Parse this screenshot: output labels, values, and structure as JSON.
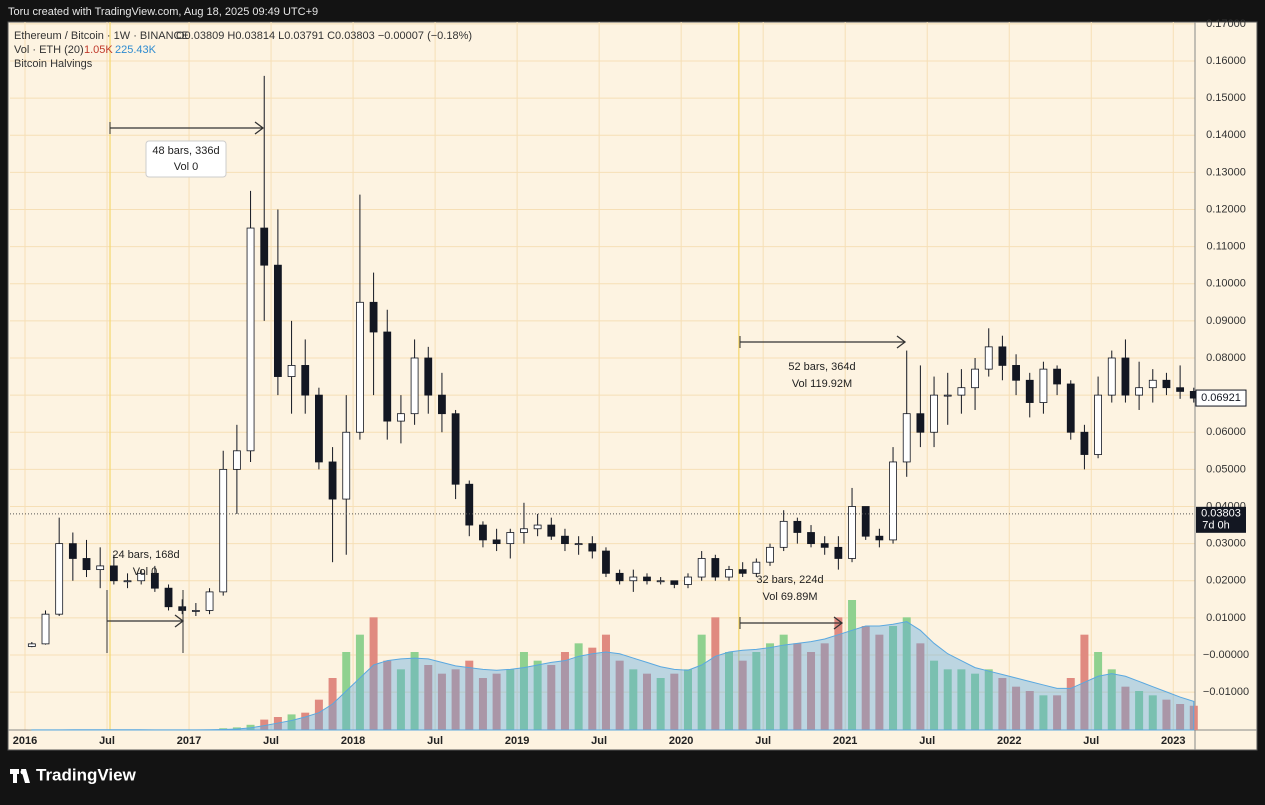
{
  "header": {
    "credit": "Toru created with TradingView.com, Aug 18, 2025 09:49 UTC+9"
  },
  "footer": {
    "logo": "TradingView"
  },
  "chart_data": {
    "type": "candlestick",
    "legend": {
      "symbol": "Ethereum / Bitcoin · 1W · BINANCE",
      "ohlc": "O0.03809 H0.03814 L0.03791 C0.03803 −0.00007 (−0.18%)",
      "volume_label": "Vol · ETH (20)",
      "volume_value": "1.05K",
      "volume_ma_value": "225.43K",
      "indicator": "Bitcoin Halvings"
    },
    "x": [
      "2016-01",
      "2016-02",
      "2016-03",
      "2016-04",
      "2016-05",
      "2016-06",
      "2016-07",
      "2016-08",
      "2016-09",
      "2016-10",
      "2016-11",
      "2016-12",
      "2017-01",
      "2017-02",
      "2017-03",
      "2017-04",
      "2017-05",
      "2017-06",
      "2017-07",
      "2017-08",
      "2017-09",
      "2017-10",
      "2017-11",
      "2017-12",
      "2018-01",
      "2018-02",
      "2018-03",
      "2018-04",
      "2018-05",
      "2018-06",
      "2018-07",
      "2018-08",
      "2018-09",
      "2018-10",
      "2018-11",
      "2018-12",
      "2019-01",
      "2019-02",
      "2019-03",
      "2019-04",
      "2019-05",
      "2019-06",
      "2019-07",
      "2019-08",
      "2019-09",
      "2019-10",
      "2019-11",
      "2019-12",
      "2020-01",
      "2020-02",
      "2020-03",
      "2020-04",
      "2020-05",
      "2020-06",
      "2020-07",
      "2020-08",
      "2020-09",
      "2020-10",
      "2020-11",
      "2020-12",
      "2021-01",
      "2021-02",
      "2021-03",
      "2021-04",
      "2021-05",
      "2021-06",
      "2021-07",
      "2021-08",
      "2021-09",
      "2021-10",
      "2021-11",
      "2021-12",
      "2022-01",
      "2022-02",
      "2022-03",
      "2022-04",
      "2022-05",
      "2022-06",
      "2022-07",
      "2022-08",
      "2022-09",
      "2022-10",
      "2022-11",
      "2022-12",
      "2023-01",
      "2023-02"
    ],
    "open": [
      0.0023,
      0.003,
      0.011,
      0.03,
      0.026,
      0.023,
      0.024,
      0.02,
      0.02,
      0.022,
      0.018,
      0.013,
      0.012,
      0.012,
      0.017,
      0.05,
      0.055,
      0.115,
      0.105,
      0.075,
      0.078,
      0.07,
      0.052,
      0.042,
      0.06,
      0.095,
      0.087,
      0.063,
      0.065,
      0.08,
      0.07,
      0.065,
      0.046,
      0.035,
      0.031,
      0.03,
      0.033,
      0.034,
      0.035,
      0.032,
      0.03,
      0.03,
      0.028,
      0.022,
      0.02,
      0.021,
      0.02,
      0.02,
      0.019,
      0.021,
      0.026,
      0.021,
      0.023,
      0.022,
      0.025,
      0.029,
      0.036,
      0.033,
      0.03,
      0.029,
      0.026,
      0.04,
      0.032,
      0.031,
      0.052,
      0.065,
      0.06,
      0.07,
      0.07,
      0.072,
      0.077,
      0.083,
      0.078,
      0.074,
      0.068,
      0.077,
      0.073,
      0.06,
      0.054,
      0.07,
      0.08,
      0.07,
      0.072,
      0.074,
      0.072,
      0.071
    ],
    "high": [
      0.0035,
      0.012,
      0.037,
      0.033,
      0.031,
      0.029,
      0.027,
      0.022,
      0.023,
      0.024,
      0.019,
      0.015,
      0.014,
      0.018,
      0.055,
      0.062,
      0.125,
      0.156,
      0.12,
      0.09,
      0.085,
      0.072,
      0.056,
      0.07,
      0.124,
      0.103,
      0.093,
      0.07,
      0.085,
      0.083,
      0.076,
      0.066,
      0.047,
      0.036,
      0.034,
      0.034,
      0.041,
      0.038,
      0.037,
      0.034,
      0.032,
      0.032,
      0.029,
      0.023,
      0.023,
      0.022,
      0.021,
      0.02,
      0.022,
      0.028,
      0.027,
      0.024,
      0.025,
      0.026,
      0.03,
      0.039,
      0.037,
      0.035,
      0.032,
      0.032,
      0.045,
      0.04,
      0.034,
      0.056,
      0.082,
      0.078,
      0.075,
      0.076,
      0.077,
      0.08,
      0.088,
      0.086,
      0.081,
      0.076,
      0.079,
      0.078,
      0.074,
      0.062,
      0.075,
      0.082,
      0.085,
      0.079,
      0.077,
      0.076,
      0.078,
      0.072
    ],
    "low": [
      0.0021,
      0.0028,
      0.0105,
      0.02,
      0.021,
      0.018,
      0.019,
      0.018,
      0.019,
      0.017,
      0.012,
      0.011,
      0.0105,
      0.011,
      0.016,
      0.038,
      0.052,
      0.09,
      0.07,
      0.065,
      0.065,
      0.05,
      0.025,
      0.027,
      0.058,
      0.07,
      0.058,
      0.057,
      0.062,
      0.065,
      0.06,
      0.042,
      0.032,
      0.029,
      0.028,
      0.026,
      0.03,
      0.032,
      0.031,
      0.028,
      0.027,
      0.026,
      0.021,
      0.019,
      0.017,
      0.019,
      0.019,
      0.018,
      0.018,
      0.02,
      0.02,
      0.02,
      0.021,
      0.021,
      0.024,
      0.028,
      0.03,
      0.029,
      0.027,
      0.023,
      0.025,
      0.031,
      0.029,
      0.03,
      0.048,
      0.056,
      0.056,
      0.062,
      0.065,
      0.066,
      0.075,
      0.074,
      0.07,
      0.064,
      0.065,
      0.07,
      0.058,
      0.05,
      0.053,
      0.068,
      0.068,
      0.066,
      0.068,
      0.07,
      0.069,
      0.068
    ],
    "close": [
      0.003,
      0.011,
      0.03,
      0.026,
      0.023,
      0.024,
      0.02,
      0.02,
      0.022,
      0.018,
      0.013,
      0.012,
      0.012,
      0.017,
      0.05,
      0.055,
      0.115,
      0.105,
      0.075,
      0.078,
      0.07,
      0.052,
      0.042,
      0.06,
      0.095,
      0.087,
      0.063,
      0.065,
      0.08,
      0.07,
      0.065,
      0.046,
      0.035,
      0.031,
      0.03,
      0.033,
      0.034,
      0.035,
      0.032,
      0.03,
      0.03,
      0.028,
      0.022,
      0.02,
      0.021,
      0.02,
      0.02,
      0.019,
      0.021,
      0.026,
      0.021,
      0.023,
      0.022,
      0.025,
      0.029,
      0.036,
      0.033,
      0.03,
      0.029,
      0.026,
      0.04,
      0.032,
      0.031,
      0.052,
      0.065,
      0.06,
      0.07,
      0.07,
      0.072,
      0.077,
      0.083,
      0.078,
      0.074,
      0.068,
      0.077,
      0.073,
      0.06,
      0.054,
      0.07,
      0.08,
      0.07,
      0.072,
      0.074,
      0.072,
      0.071,
      0.0692
    ],
    "volume": [
      1,
      2,
      5,
      4,
      3,
      3,
      3,
      2,
      2,
      2,
      2,
      2,
      3,
      5,
      20,
      30,
      60,
      120,
      150,
      180,
      200,
      350,
      600,
      900,
      1100,
      1300,
      800,
      700,
      900,
      750,
      650,
      700,
      800,
      600,
      650,
      700,
      900,
      800,
      750,
      900,
      1000,
      950,
      1100,
      800,
      700,
      650,
      600,
      650,
      700,
      1100,
      1300,
      900,
      800,
      900,
      1000,
      1100,
      1000,
      900,
      1000,
      1300,
      1500,
      1200,
      1100,
      1200,
      1300,
      1000,
      800,
      700,
      700,
      650,
      700,
      600,
      500,
      450,
      400,
      400,
      600,
      1100,
      900,
      700,
      500,
      450,
      400,
      350,
      300,
      280
    ],
    "volume_ma": [
      1,
      1,
      2,
      3,
      3,
      3,
      3,
      3,
      3,
      2,
      2,
      2,
      2,
      3,
      6,
      12,
      25,
      50,
      80,
      110,
      150,
      200,
      300,
      450,
      600,
      750,
      800,
      820,
      830,
      820,
      780,
      740,
      720,
      700,
      690,
      700,
      720,
      750,
      780,
      800,
      850,
      880,
      900,
      880,
      830,
      780,
      730,
      700,
      690,
      750,
      850,
      900,
      920,
      930,
      950,
      980,
      1000,
      1020,
      1050,
      1100,
      1150,
      1200,
      1200,
      1220,
      1250,
      1150,
      1000,
      880,
      800,
      720,
      680,
      640,
      600,
      560,
      520,
      480,
      480,
      550,
      620,
      650,
      620,
      560,
      500,
      440,
      380,
      330
    ],
    "up_color": "#ffffff",
    "down_color": "#131722",
    "candle_border": "#131722",
    "volume_up_color": "#8fd18f",
    "volume_down_color": "#e08a80",
    "volume_ma_color": "#5aa8e0",
    "ylim": [
      -0.0202,
      0.1705
    ],
    "yticks": [
      {
        "value": 0.17,
        "label": "0.17000"
      },
      {
        "value": 0.16,
        "label": "0.16000"
      },
      {
        "value": 0.15,
        "label": "0.15000"
      },
      {
        "value": 0.14,
        "label": "0.14000"
      },
      {
        "value": 0.13,
        "label": "0.13000"
      },
      {
        "value": 0.12,
        "label": "0.12000"
      },
      {
        "value": 0.11,
        "label": "0.11000"
      },
      {
        "value": 0.1,
        "label": "0.10000"
      },
      {
        "value": 0.09,
        "label": "0.09000"
      },
      {
        "value": 0.08,
        "label": "0.08000"
      },
      {
        "value": 0.07,
        "label": "0.07000"
      },
      {
        "value": 0.06,
        "label": "0.06000"
      },
      {
        "value": 0.05,
        "label": "0.05000"
      },
      {
        "value": 0.04,
        "label": "0.04000"
      },
      {
        "value": 0.03,
        "label": "0.03000"
      },
      {
        "value": 0.02,
        "label": "0.02000"
      },
      {
        "value": 0.01,
        "label": "0.01000"
      },
      {
        "value": 0,
        "label": "−0.00000"
      },
      {
        "value": -0.01,
        "label": "−0.01000"
      }
    ],
    "xticks": [
      {
        "value": "2016-01",
        "label": "2016"
      },
      {
        "value": "2016-07",
        "label": "Jul"
      },
      {
        "value": "2017-01",
        "label": "2017"
      },
      {
        "value": "2017-07",
        "label": "Jul"
      },
      {
        "value": "2018-01",
        "label": "2018"
      },
      {
        "value": "2018-07",
        "label": "Jul"
      },
      {
        "value": "2019-01",
        "label": "2019"
      },
      {
        "value": "2019-07",
        "label": "Jul"
      },
      {
        "value": "2020-01",
        "label": "2020"
      },
      {
        "value": "2020-07",
        "label": "Jul"
      },
      {
        "value": "2021-01",
        "label": "2021"
      },
      {
        "value": "2021-07",
        "label": "Jul"
      },
      {
        "value": "2022-01",
        "label": "2022"
      },
      {
        "value": "2022-07",
        "label": "Jul"
      },
      {
        "value": "2023-01",
        "label": "2023"
      }
    ],
    "grid": true,
    "halvings": [
      "2016-07",
      "2020-05"
    ],
    "halving_color": "#f5d76e",
    "price_labels": [
      {
        "value": 0.06921,
        "label": "0.06921"
      },
      {
        "value": 0.03803,
        "label": "0.03803",
        "countdown": "7d 0h"
      }
    ],
    "measures": [
      {
        "bars": "48 bars, 336d",
        "vol": "Vol 0"
      },
      {
        "bars": "24 bars, 168d",
        "vol": "Vol 0"
      },
      {
        "bars": "52 bars, 364d",
        "vol": "Vol 119.92M"
      },
      {
        "bars": "32 bars, 224d",
        "vol": "Vol 69.89M"
      }
    ]
  }
}
